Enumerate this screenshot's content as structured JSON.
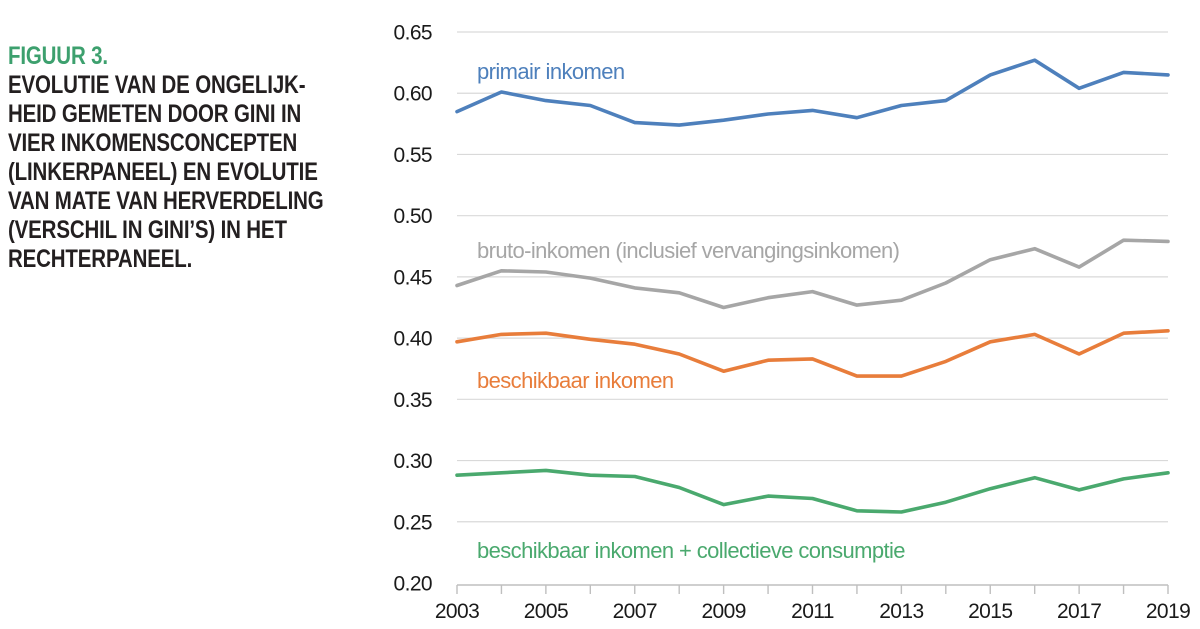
{
  "figure": {
    "label": "FIGUUR 3.",
    "caption_lines": [
      "EVOLUTIE VAN DE ONGELIJK-",
      "HEID GEMETEN DOOR GINI IN",
      "VIER INKOMENSCONCEPTEN",
      "(LINKERPANEEL) EN EVOLUTIE",
      "VAN MATE VAN HERVERDELING",
      "(VERSCHIL IN GINI’S) IN HET",
      "RECHTERPANEEL."
    ],
    "accent_color": "#3da06e",
    "text_color": "#231f20"
  },
  "chart_data": {
    "type": "line",
    "title": "",
    "xlabel": "",
    "ylabel": "",
    "x": [
      2003,
      2004,
      2005,
      2006,
      2007,
      2008,
      2009,
      2010,
      2011,
      2012,
      2013,
      2014,
      2015,
      2016,
      2017,
      2018,
      2019
    ],
    "x_tick_labels": [
      "2003",
      "2005",
      "2007",
      "2009",
      "2011",
      "2013",
      "2015",
      "2017",
      "2019"
    ],
    "ylim": [
      0.2,
      0.65
    ],
    "y_ticks": [
      0.65,
      0.6,
      0.55,
      0.5,
      0.45,
      0.4,
      0.35,
      0.3,
      0.25,
      0.2
    ],
    "y_tick_labels": [
      "0.65",
      "0.60",
      "0.55",
      "0.50",
      "0.45",
      "0.40",
      "0.35",
      "0.30",
      "0.25",
      "0.20"
    ],
    "grid": true,
    "legend_position": "inline-labels",
    "gridline_color": "#d9d9d9",
    "axis_color": "#bfbfbf",
    "tick_text_color": "#1a1a1a",
    "series": [
      {
        "name": "primair inkomen",
        "color": "#4e80bc",
        "values": [
          0.585,
          0.601,
          0.594,
          0.59,
          0.576,
          0.574,
          0.578,
          0.583,
          0.586,
          0.58,
          0.59,
          0.594,
          0.615,
          0.627,
          0.604,
          0.617,
          0.615
        ]
      },
      {
        "name": "bruto-inkomen (inclusief vervangingsinkomen)",
        "color": "#a6a6a6",
        "values": [
          0.443,
          0.455,
          0.454,
          0.449,
          0.441,
          0.437,
          0.425,
          0.433,
          0.438,
          0.427,
          0.431,
          0.445,
          0.464,
          0.473,
          0.458,
          0.48,
          0.479
        ]
      },
      {
        "name": "beschikbaar inkomen",
        "color": "#e87d3b",
        "values": [
          0.397,
          0.403,
          0.404,
          0.399,
          0.395,
          0.387,
          0.373,
          0.382,
          0.383,
          0.369,
          0.369,
          0.381,
          0.397,
          0.403,
          0.387,
          0.404,
          0.406
        ]
      },
      {
        "name": "beschikbaar inkomen + collectieve consumptie",
        "color": "#4aa96e",
        "values": [
          0.288,
          0.29,
          0.292,
          0.288,
          0.287,
          0.278,
          0.264,
          0.271,
          0.269,
          0.259,
          0.258,
          0.266,
          0.277,
          0.286,
          0.276,
          0.285,
          0.29
        ]
      }
    ]
  }
}
